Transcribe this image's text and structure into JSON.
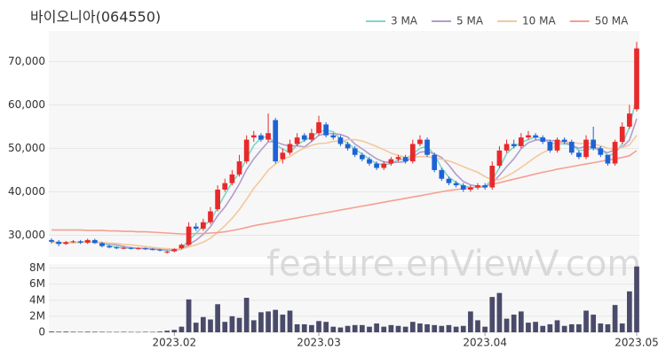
{
  "chart_data": {
    "type": "candlestick",
    "title": "바이오니아(064550)",
    "watermark": "feature.enViewV.com",
    "up_color": "#e8292b",
    "down_color": "#1e63d6",
    "volume_color": "#4a4a6a",
    "xticks": [
      {
        "value": 17,
        "label": "2023.02"
      },
      {
        "value": 37,
        "label": "2023.03"
      },
      {
        "value": 60,
        "label": "2023.04"
      },
      {
        "value": 81,
        "label": "2023.05"
      }
    ],
    "ylim": [
      25000,
      77000
    ],
    "yticks": [
      {
        "value": 30000,
        "label": "30,000"
      },
      {
        "value": 40000,
        "label": "40,000"
      },
      {
        "value": 50000,
        "label": "50,000"
      },
      {
        "value": 60000,
        "label": "60,000"
      },
      {
        "value": 70000,
        "label": "70,000"
      }
    ],
    "volume_ylim": [
      0,
      8500000
    ],
    "volume_yticks": [
      0,
      {
        "value": 2000000,
        "label": "2M"
      },
      {
        "value": 4000000,
        "label": "4M"
      },
      {
        "value": 6000000,
        "label": "6M"
      },
      {
        "value": 8000000,
        "label": "8M"
      }
    ],
    "open": [
      28900,
      28500,
      28000,
      28400,
      28600,
      28300,
      28900,
      28200,
      27500,
      27200,
      27000,
      27100,
      26900,
      27000,
      26800,
      26700,
      26000,
      26300,
      27000,
      27800,
      32000,
      31500,
      33000,
      36000,
      40500,
      42000,
      44000,
      47000,
      52500,
      53000,
      52000,
      56500,
      47500,
      49000,
      51000,
      53000,
      52000,
      53500,
      55500,
      53000,
      52500,
      51000,
      50000,
      48500,
      47500,
      46500,
      45500,
      46500,
      47500,
      48000,
      47000,
      51000,
      52000,
      48500,
      45000,
      43000,
      42000,
      41500,
      40500,
      41000,
      41500,
      41000,
      46000,
      49500,
      51000,
      50500,
      52500,
      53000,
      52500,
      51500,
      49500,
      52000,
      51500,
      49000,
      48000,
      52000,
      50000,
      48500,
      46500,
      51500,
      55000,
      59000
    ],
    "high": [
      29300,
      28900,
      28700,
      28900,
      28900,
      29200,
      29200,
      28500,
      27800,
      27500,
      27400,
      27300,
      27200,
      27200,
      27000,
      26900,
      26500,
      27000,
      28100,
      33000,
      32800,
      33800,
      36500,
      41500,
      43000,
      45000,
      48500,
      53000,
      54000,
      53500,
      58000,
      57000,
      50000,
      52000,
      53500,
      53500,
      54500,
      57500,
      56000,
      53500,
      53000,
      51500,
      50500,
      49000,
      48000,
      47000,
      47000,
      48000,
      48500,
      48500,
      52000,
      53000,
      52500,
      49000,
      45500,
      43500,
      42500,
      42000,
      41500,
      42000,
      42000,
      47000,
      50500,
      52000,
      52000,
      53500,
      54000,
      53500,
      53000,
      52000,
      52500,
      52500,
      52000,
      49500,
      53000,
      55000,
      50500,
      48500,
      52000,
      56000,
      60000,
      74500
    ],
    "low": [
      28100,
      27500,
      27800,
      28200,
      28000,
      28000,
      28000,
      27200,
      27000,
      26800,
      26800,
      26700,
      26700,
      26600,
      26500,
      26300,
      25800,
      26100,
      26800,
      27500,
      31000,
      31000,
      32500,
      35500,
      40000,
      41500,
      43500,
      46500,
      51500,
      51500,
      51500,
      46500,
      46500,
      48500,
      50500,
      51500,
      51500,
      53000,
      52500,
      52000,
      50500,
      49500,
      48000,
      47000,
      46000,
      45000,
      45000,
      46000,
      47000,
      46500,
      46500,
      50500,
      48000,
      44500,
      42500,
      41500,
      41000,
      40000,
      40000,
      40500,
      40500,
      40500,
      45500,
      49000,
      50000,
      50000,
      52000,
      52000,
      51000,
      49000,
      49000,
      51000,
      48500,
      47500,
      47500,
      49500,
      48000,
      46000,
      46000,
      51000,
      54500,
      58500
    ],
    "close": [
      28500,
      28000,
      28400,
      28600,
      28300,
      28900,
      28200,
      27500,
      27200,
      27000,
      27100,
      26900,
      27000,
      26800,
      26700,
      26500,
      26200,
      26800,
      27800,
      32000,
      31500,
      33000,
      35500,
      40500,
      42000,
      44000,
      47000,
      52000,
      53000,
      52000,
      53500,
      47000,
      49000,
      51000,
      52500,
      52000,
      53500,
      56000,
      53000,
      52500,
      51000,
      50000,
      48500,
      47500,
      46500,
      45500,
      46500,
      47500,
      48000,
      47000,
      51000,
      52000,
      48500,
      45000,
      43000,
      42000,
      41500,
      40500,
      41000,
      41500,
      41000,
      46000,
      49500,
      51000,
      50500,
      52500,
      53000,
      52500,
      51500,
      49500,
      52000,
      51500,
      49000,
      48000,
      52000,
      50000,
      48500,
      46500,
      51500,
      55000,
      58000,
      73000
    ],
    "volume": [
      100000,
      80000,
      90000,
      70000,
      60000,
      80000,
      70000,
      60000,
      50000,
      50000,
      60000,
      50000,
      40000,
      60000,
      50000,
      90000,
      200000,
      300000,
      700000,
      4100000,
      1200000,
      1900000,
      1600000,
      3500000,
      1300000,
      2000000,
      1800000,
      4300000,
      1500000,
      2500000,
      2600000,
      2800000,
      2200000,
      2700000,
      1000000,
      1000000,
      900000,
      1400000,
      1300000,
      700000,
      600000,
      800000,
      900000,
      900000,
      700000,
      1100000,
      700000,
      900000,
      800000,
      700000,
      1300000,
      1100000,
      1000000,
      900000,
      800000,
      900000,
      700000,
      800000,
      2600000,
      1500000,
      700000,
      4400000,
      4900000,
      1700000,
      2200000,
      2600000,
      1200000,
      1300000,
      800000,
      1000000,
      1500000,
      800000,
      1000000,
      1000000,
      2700000,
      2200000,
      1100000,
      1000000,
      3400000,
      1100000,
      5100000,
      8200000
    ],
    "series": [
      {
        "name": "3 MA",
        "color": "#7fd6c9",
        "values": [
          28500,
          28250,
          28300,
          28330,
          28430,
          28600,
          28470,
          28200,
          27630,
          27230,
          27100,
          27000,
          27000,
          26900,
          26830,
          26670,
          26470,
          26500,
          26930,
          28870,
          30430,
          32170,
          33330,
          36330,
          39330,
          42170,
          44330,
          47670,
          50670,
          52330,
          52830,
          50830,
          49830,
          49000,
          50830,
          51830,
          52670,
          53830,
          54170,
          53830,
          52170,
          51170,
          49830,
          48670,
          47500,
          46500,
          46170,
          46500,
          47330,
          47500,
          48670,
          50000,
          50500,
          48500,
          45500,
          43330,
          42170,
          41330,
          41000,
          41000,
          41170,
          42830,
          45500,
          48830,
          50330,
          51330,
          52000,
          52670,
          52330,
          51170,
          51000,
          51000,
          50830,
          49500,
          49670,
          50000,
          50170,
          48330,
          48830,
          51000,
          54830,
          62000
        ]
      },
      {
        "name": "5 MA",
        "color": "#b29ccf",
        "values": [
          28500,
          28250,
          28300,
          28375,
          28360,
          28440,
          28480,
          28300,
          28020,
          27760,
          27400,
          27140,
          27040,
          26960,
          26900,
          26780,
          26640,
          26600,
          26800,
          27860,
          28860,
          30220,
          31960,
          34500,
          36500,
          39000,
          41800,
          45100,
          47600,
          49600,
          51500,
          51500,
          50900,
          50500,
          50600,
          50300,
          51600,
          53000,
          53400,
          53400,
          53200,
          52600,
          51000,
          49900,
          48700,
          47600,
          46900,
          46700,
          46800,
          46900,
          48000,
          49100,
          49300,
          48700,
          47900,
          46100,
          44000,
          42400,
          41600,
          41300,
          41100,
          42000,
          43800,
          45800,
          47600,
          49900,
          51300,
          51900,
          52000,
          51800,
          51700,
          51400,
          50700,
          50000,
          50500,
          50100,
          49500,
          49000,
          49700,
          50300,
          51900,
          56800
        ]
      },
      {
        "name": "10 MA",
        "color": "#f4c89a",
        "values": [
          28500,
          28300,
          28300,
          28400,
          28400,
          28400,
          28400,
          28300,
          28200,
          28100,
          27900,
          27800,
          27600,
          27400,
          27200,
          27000,
          26900,
          26800,
          26900,
          27300,
          27800,
          28400,
          29300,
          30700,
          32200,
          33900,
          35900,
          38300,
          40800,
          42800,
          45000,
          46400,
          47500,
          48100,
          49200,
          50100,
          50700,
          51100,
          51200,
          51600,
          51700,
          52000,
          52000,
          51700,
          51100,
          50400,
          49700,
          48900,
          48400,
          47900,
          47900,
          48100,
          48100,
          47800,
          47500,
          47100,
          46500,
          45800,
          45100,
          44500,
          43500,
          42700,
          42800,
          43600,
          44500,
          45600,
          46800,
          48000,
          49000,
          49800,
          50900,
          51400,
          51400,
          51100,
          51200,
          51000,
          50600,
          50000,
          49900,
          50200,
          50800,
          53000
        ]
      },
      {
        "name": "50 MA",
        "color": "#f4a090",
        "values": [
          31200,
          31200,
          31200,
          31200,
          31200,
          31100,
          31100,
          31100,
          31000,
          31000,
          30900,
          30900,
          30800,
          30800,
          30700,
          30600,
          30500,
          30400,
          30300,
          30300,
          30400,
          30400,
          30500,
          30600,
          30800,
          31100,
          31400,
          31800,
          32200,
          32500,
          32800,
          33100,
          33400,
          33700,
          34000,
          34300,
          34600,
          34900,
          35200,
          35500,
          35800,
          36100,
          36400,
          36700,
          37000,
          37300,
          37600,
          37900,
          38200,
          38500,
          38800,
          39100,
          39400,
          39700,
          40000,
          40300,
          40500,
          40700,
          40900,
          41100,
          41300,
          41700,
          42100,
          42500,
          42900,
          43300,
          43700,
          44100,
          44500,
          44800,
          45200,
          45500,
          45800,
          46100,
          46400,
          46700,
          47000,
          47300,
          47600,
          47900,
          48300,
          49500
        ]
      }
    ]
  }
}
